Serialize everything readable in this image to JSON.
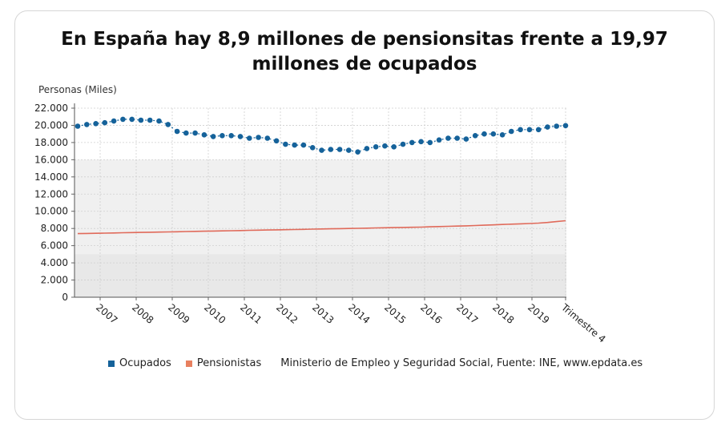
{
  "title": "En España hay 8,9 millones de pensionsitas frente a 19,97 millones de ocupados",
  "legend": {
    "ocupados": "Ocupados",
    "pensionistas": "Pensionistas",
    "source": "Ministerio de Empleo y Seguridad Social, Fuente: INE, www.epdata.es"
  },
  "colors": {
    "ocupados": "#15629a",
    "pensionistas": "#e8805f",
    "pension_line": "#e06a5a",
    "band": "#e8e8e8",
    "band_light": "#f0f0f0"
  },
  "chart_data": {
    "type": "line",
    "ylabel": "Personas (Miles)",
    "ylim": [
      0,
      22000
    ],
    "yticks": [
      "0",
      "2.000",
      "4.000",
      "6.000",
      "8.000",
      "10.000",
      "12.000",
      "14.000",
      "16.000",
      "18.000",
      "20.000",
      "22.000"
    ],
    "x_tick_labels": [
      "2007",
      "2008",
      "2009",
      "2010",
      "2011",
      "2012",
      "2013",
      "2014",
      "2015",
      "2016",
      "2017",
      "2018",
      "2019",
      "Trimestre 4"
    ],
    "grid": true,
    "series": [
      {
        "name": "Ocupados",
        "values": [
          19900,
          20100,
          20200,
          20300,
          20500,
          20700,
          20700,
          20600,
          20600,
          20500,
          20100,
          19300,
          19100,
          19100,
          18900,
          18700,
          18800,
          18800,
          18700,
          18500,
          18600,
          18500,
          18200,
          17800,
          17700,
          17700,
          17400,
          17100,
          17200,
          17200,
          17100,
          16900,
          17300,
          17500,
          17600,
          17500,
          17800,
          18000,
          18100,
          18000,
          18300,
          18500,
          18500,
          18400,
          18800,
          19000,
          19000,
          18900,
          19300,
          19500,
          19500,
          19500,
          19800,
          19900,
          19970
        ]
      },
      {
        "name": "Pensionistas",
        "values": [
          7400,
          7420,
          7440,
          7460,
          7480,
          7500,
          7520,
          7540,
          7560,
          7580,
          7600,
          7620,
          7640,
          7660,
          7680,
          7700,
          7720,
          7740,
          7760,
          7780,
          7800,
          7820,
          7840,
          7860,
          7880,
          7900,
          7920,
          7940,
          7960,
          7980,
          8000,
          8020,
          8040,
          8060,
          8080,
          8100,
          8120,
          8140,
          8160,
          8190,
          8220,
          8250,
          8280,
          8310,
          8340,
          8380,
          8420,
          8460,
          8500,
          8540,
          8580,
          8620,
          8700,
          8800,
          8900
        ]
      }
    ]
  }
}
